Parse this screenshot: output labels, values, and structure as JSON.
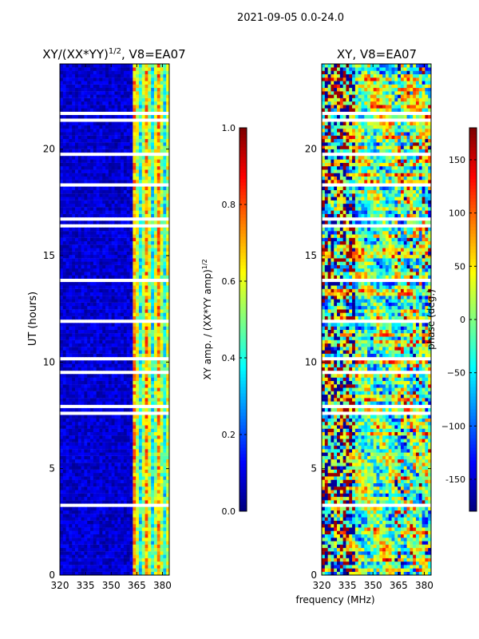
{
  "suptitle": "2021-09-05 0.0-24.0",
  "xlabel_shared": "frequency (MHz)",
  "chart_data": [
    {
      "type": "heatmap",
      "title_prefix": "XY/(XX*YY)",
      "title_exp": "1/2",
      "title_suffix": ", V8=EA07",
      "ylabel": "UT (hours)",
      "xlim": [
        320,
        384
      ],
      "ylim": [
        0,
        24
      ],
      "xticks": [
        320,
        335,
        350,
        365,
        380
      ],
      "yticks": [
        0,
        5,
        10,
        15,
        20
      ],
      "colormap": "jet",
      "colorbar": {
        "label_main": "XY amp. / (XX*YY amp)",
        "label_exp": "1/2",
        "vmin": 0.0,
        "vmax": 1.0,
        "ticks": [
          "0.0",
          "0.2",
          "0.4",
          "0.6",
          "0.8",
          "1.0"
        ]
      }
    },
    {
      "type": "heatmap",
      "title": "XY, V8=EA07",
      "xlim": [
        320,
        384
      ],
      "ylim": [
        0,
        24
      ],
      "xticks": [
        320,
        335,
        350,
        365,
        380
      ],
      "yticks": [
        0,
        5,
        10,
        15,
        20
      ],
      "colormap": "jet",
      "colorbar": {
        "label": "phase (deg.)",
        "vmin": -180,
        "vmax": 180,
        "ticks": [
          "-150",
          "−100",
          "−50",
          "0",
          "50",
          "100",
          "150"
        ]
      }
    }
  ]
}
